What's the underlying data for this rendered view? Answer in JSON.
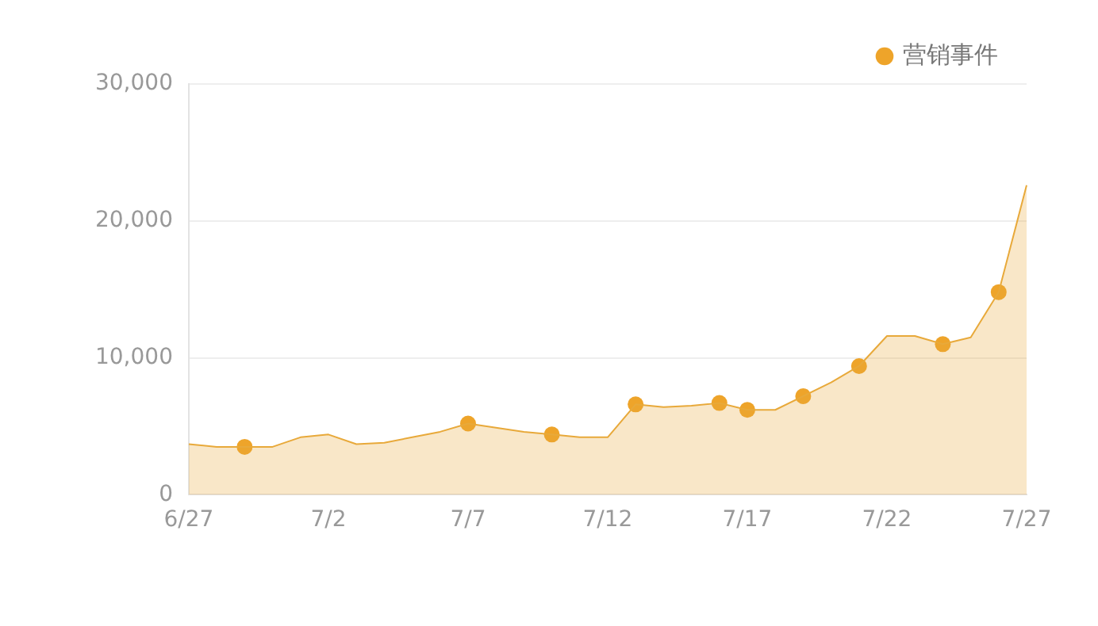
{
  "chart_data": {
    "type": "area",
    "categories": [
      "6/27",
      null,
      null,
      null,
      null,
      "7/2",
      null,
      null,
      null,
      null,
      "7/7",
      null,
      null,
      null,
      null,
      "7/12",
      null,
      null,
      null,
      null,
      "7/17",
      null,
      null,
      null,
      null,
      "7/22",
      null,
      null,
      null,
      null,
      "7/27"
    ],
    "series": [
      {
        "color": "#e8a93a",
        "values": [
          3700,
          3500,
          3500,
          3500,
          4200,
          4400,
          3700,
          3800,
          4200,
          4600,
          5200,
          4900,
          4600,
          4400,
          4200,
          4200,
          6600,
          6400,
          6500,
          6700,
          6200,
          6200,
          7200,
          8200,
          9400,
          11600,
          11600,
          11000,
          11500,
          14800,
          22600
        ]
      },
      {
        "type": "scatter",
        "name": "营销事件",
        "marker": "circle",
        "color": "#eea42a",
        "values": [
          null,
          null,
          3500,
          null,
          null,
          null,
          null,
          null,
          null,
          null,
          5200,
          null,
          null,
          4400,
          null,
          null,
          6600,
          null,
          null,
          6700,
          6200,
          null,
          7200,
          null,
          9400,
          null,
          null,
          11000,
          null,
          14800,
          null
        ]
      }
    ],
    "ylim": [
      0,
      30000
    ],
    "yticks": [
      {
        "value": 0,
        "label": "0"
      },
      {
        "value": 10000,
        "label": "10,000"
      },
      {
        "value": 20000,
        "label": "20,000"
      },
      {
        "value": 30000,
        "label": "30,000"
      }
    ],
    "grid": "y",
    "legend": "top right"
  }
}
